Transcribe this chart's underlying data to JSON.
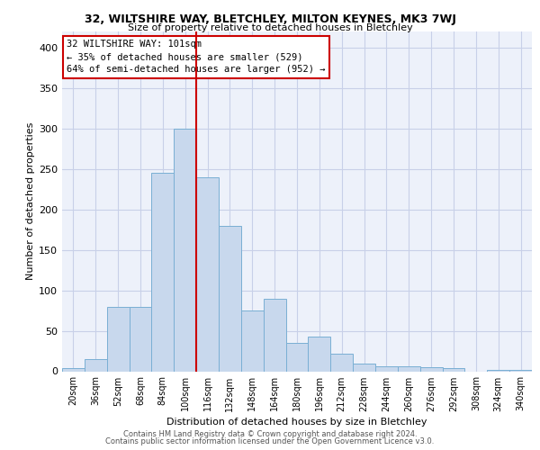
{
  "title1": "32, WILTSHIRE WAY, BLETCHLEY, MILTON KEYNES, MK3 7WJ",
  "title2": "Size of property relative to detached houses in Bletchley",
  "xlabel": "Distribution of detached houses by size in Bletchley",
  "ylabel": "Number of detached properties",
  "categories": [
    "20sqm",
    "36sqm",
    "52sqm",
    "68sqm",
    "84sqm",
    "100sqm",
    "116sqm",
    "132sqm",
    "148sqm",
    "164sqm",
    "180sqm",
    "196sqm",
    "212sqm",
    "228sqm",
    "244sqm",
    "260sqm",
    "276sqm",
    "292sqm",
    "308sqm",
    "324sqm",
    "340sqm"
  ],
  "values": [
    4,
    15,
    80,
    80,
    245,
    300,
    240,
    180,
    75,
    90,
    35,
    43,
    22,
    10,
    6,
    6,
    5,
    4,
    0,
    2,
    2
  ],
  "bar_color": "#c8d8ed",
  "bar_edge_color": "#7aafd4",
  "vline_color": "#cc0000",
  "vline_index": 5,
  "annotation_line1": "32 WILTSHIRE WAY: 101sqm",
  "annotation_line2": "← 35% of detached houses are smaller (529)",
  "annotation_line3": "64% of semi-detached houses are larger (952) →",
  "annotation_box_edgecolor": "#cc0000",
  "ylim_max": 420,
  "yticks": [
    0,
    50,
    100,
    150,
    200,
    250,
    300,
    350,
    400
  ],
  "plot_bg_color": "#edf1fa",
  "grid_color": "#c8d0e8",
  "footer1": "Contains HM Land Registry data © Crown copyright and database right 2024.",
  "footer2": "Contains public sector information licensed under the Open Government Licence v3.0."
}
